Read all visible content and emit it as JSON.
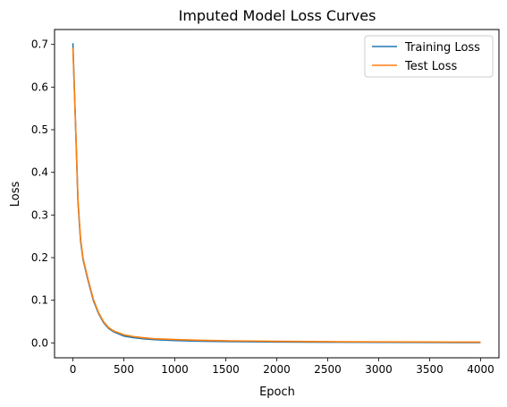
{
  "chart_data": {
    "type": "line",
    "title": "Imputed Model Loss Curves",
    "xlabel": "Epoch",
    "ylabel": "Loss",
    "xlim": [
      -180,
      4180
    ],
    "ylim": [
      -0.035,
      0.735
    ],
    "xticks": [
      0,
      500,
      1000,
      1500,
      2000,
      2500,
      3000,
      3500,
      4000
    ],
    "yticks": [
      0.0,
      0.1,
      0.2,
      0.3,
      0.4,
      0.5,
      0.6,
      0.7
    ],
    "ytick_labels": [
      "0.0",
      "0.1",
      "0.2",
      "0.3",
      "0.4",
      "0.5",
      "0.6",
      "0.7"
    ],
    "grid": false,
    "legend_position": "upper right",
    "series": [
      {
        "name": "Training Loss",
        "color": "#1f77b4",
        "x": [
          0,
          25,
          50,
          75,
          100,
          150,
          200,
          250,
          300,
          350,
          400,
          500,
          600,
          700,
          800,
          1000,
          1250,
          1500,
          2000,
          2500,
          3000,
          3500,
          4000
        ],
        "y": [
          0.703,
          0.52,
          0.33,
          0.24,
          0.195,
          0.145,
          0.1,
          0.07,
          0.048,
          0.034,
          0.026,
          0.016,
          0.012,
          0.0095,
          0.0075,
          0.0055,
          0.004,
          0.0032,
          0.0022,
          0.0016,
          0.0012,
          0.001,
          0.0008
        ]
      },
      {
        "name": "Test Loss",
        "color": "#ff7f0e",
        "x": [
          0,
          25,
          50,
          75,
          100,
          150,
          200,
          250,
          300,
          350,
          400,
          500,
          600,
          700,
          800,
          1000,
          1250,
          1500,
          2000,
          2500,
          3000,
          3500,
          4000
        ],
        "y": [
          0.692,
          0.52,
          0.335,
          0.245,
          0.198,
          0.148,
          0.103,
          0.072,
          0.05,
          0.036,
          0.028,
          0.019,
          0.0145,
          0.0118,
          0.0098,
          0.0078,
          0.006,
          0.0049,
          0.0036,
          0.0028,
          0.0023,
          0.002,
          0.0018
        ]
      }
    ]
  }
}
